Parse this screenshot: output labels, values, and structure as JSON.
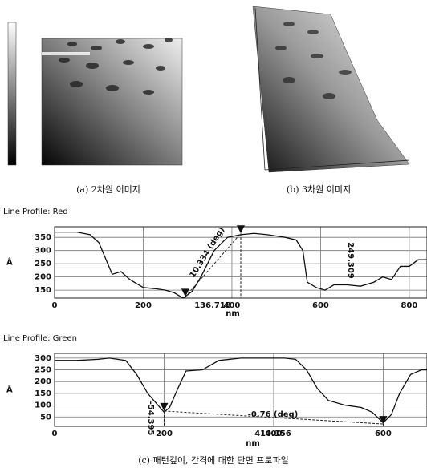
{
  "figure": {
    "caption_a": "(a) 2차원 이미지",
    "caption_b": "(b) 3차원 이미지",
    "caption_c": "(c) 패턴깊이, 간격에 대한 단면 프로파일"
  },
  "chart_data": [
    {
      "type": "line",
      "title": "Line Profile: Red",
      "x_label": "nm",
      "y_label": "Å",
      "xlim": [
        0,
        840
      ],
      "xticks": [
        0,
        200,
        400,
        600,
        800
      ],
      "ylim": [
        120,
        390
      ],
      "yticks": [
        150,
        200,
        250,
        300,
        350
      ],
      "grid": true,
      "series": [
        {
          "color": "#111111",
          "x": [
            0,
            50,
            80,
            100,
            130,
            150,
            170,
            200,
            230,
            250,
            270,
            290,
            310,
            330,
            360,
            390,
            420,
            450,
            480,
            520,
            545,
            560,
            570,
            590,
            610,
            630,
            660,
            690,
            720,
            740,
            760,
            780,
            800,
            820,
            840
          ],
          "values": [
            370,
            370,
            360,
            330,
            210,
            220,
            190,
            160,
            155,
            150,
            140,
            120,
            145,
            200,
            300,
            350,
            360,
            365,
            360,
            350,
            340,
            300,
            180,
            160,
            150,
            170,
            170,
            165,
            180,
            200,
            190,
            240,
            240,
            265,
            265
          ]
        }
      ],
      "cursors": [
        {
          "x": 295,
          "y": 125
        },
        {
          "x": 420,
          "y": 365
        }
      ],
      "annotations": [
        "10.334 (deg)",
        "249.309",
        "136.718"
      ]
    },
    {
      "type": "line",
      "title": "Line Profile: Green",
      "x_label": "nm",
      "y_label": "Å",
      "xlim": [
        0,
        680
      ],
      "xticks": [
        0,
        200,
        400,
        600
      ],
      "ylim": [
        10,
        320
      ],
      "yticks": [
        50,
        100,
        150,
        200,
        250,
        300
      ],
      "grid": true,
      "series": [
        {
          "color": "#111111",
          "x": [
            0,
            40,
            80,
            100,
            130,
            150,
            170,
            185,
            200,
            210,
            225,
            240,
            270,
            300,
            340,
            380,
            420,
            440,
            460,
            480,
            500,
            530,
            560,
            580,
            600,
            615,
            630,
            650,
            670,
            680
          ],
          "values": [
            290,
            290,
            295,
            300,
            290,
            230,
            150,
            110,
            70,
            90,
            170,
            245,
            250,
            290,
            300,
            300,
            300,
            295,
            250,
            170,
            120,
            100,
            90,
            70,
            25,
            60,
            150,
            230,
            250,
            250
          ]
        }
      ],
      "cursors": [
        {
          "x": 200,
          "y": 75
        },
        {
          "x": 600,
          "y": 20
        }
      ],
      "annotations": [
        "-54.395",
        "-0.76 (deg)",
        "410.156"
      ]
    }
  ]
}
